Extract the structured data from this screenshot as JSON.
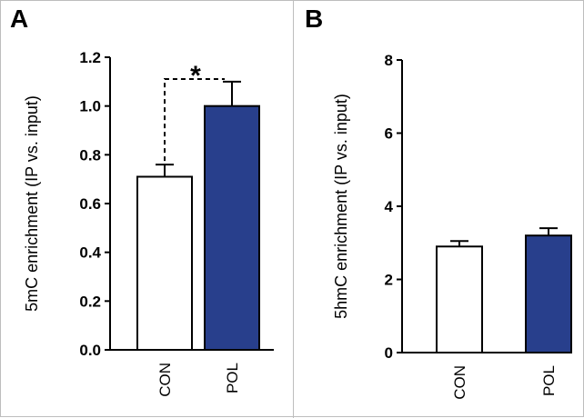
{
  "chart_data": [
    {
      "panel": "A",
      "type": "bar",
      "categories": [
        "CON",
        "POL"
      ],
      "values": [
        0.71,
        1.0
      ],
      "errors": [
        0.05,
        0.1
      ],
      "bar_colors": [
        "#ffffff",
        "#283f8c"
      ],
      "ylabel": "5mC enrichment (IP vs. input)",
      "ylim": [
        0,
        1.2
      ],
      "yticks": [
        "0.0",
        "0.2",
        "0.4",
        "0.6",
        "0.8",
        "1.0",
        "1.2"
      ],
      "annotation": "*",
      "grid": false
    },
    {
      "panel": "B",
      "type": "bar",
      "categories": [
        "CON",
        "POL"
      ],
      "values": [
        2.9,
        3.2
      ],
      "errors": [
        0.15,
        0.2
      ],
      "bar_colors": [
        "#ffffff",
        "#283f8c"
      ],
      "ylabel": "5hmC enrichment (IP vs. input)",
      "ylim": [
        0,
        8
      ],
      "yticks": [
        "0",
        "2",
        "4",
        "6",
        "8"
      ],
      "grid": false
    }
  ]
}
